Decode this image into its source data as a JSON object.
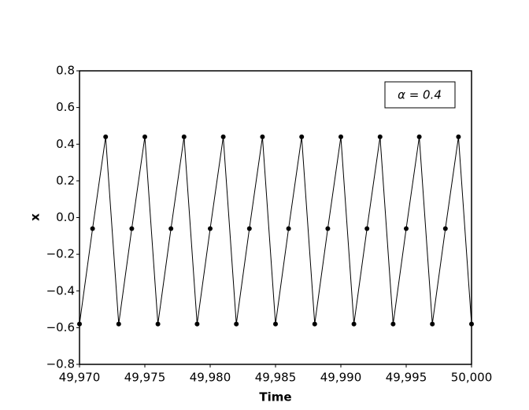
{
  "chart_data": {
    "type": "line",
    "xlabel": "Time",
    "ylabel": "x",
    "annotation": "α = 0.4",
    "color": "#000000",
    "markers": true,
    "x": [
      49970,
      49971,
      49972,
      49973,
      49974,
      49975,
      49976,
      49977,
      49978,
      49979,
      49980,
      49981,
      49982,
      49983,
      49984,
      49985,
      49986,
      49987,
      49988,
      49989,
      49990,
      49991,
      49992,
      49993,
      49994,
      49995,
      49996,
      49997,
      49998,
      49999,
      50000
    ],
    "values": [
      -0.58,
      -0.06,
      0.44,
      -0.58,
      -0.06,
      0.44,
      -0.58,
      -0.06,
      0.44,
      -0.58,
      -0.06,
      0.44,
      -0.58,
      -0.06,
      0.44,
      -0.58,
      -0.06,
      0.44,
      -0.58,
      -0.06,
      0.44,
      -0.58,
      -0.06,
      0.44,
      -0.58,
      -0.06,
      0.44,
      -0.58,
      -0.06,
      0.44,
      -0.58
    ],
    "xlim": [
      49970,
      50000
    ],
    "xticks": [
      {
        "value": 49970,
        "label": "49,970"
      },
      {
        "value": 49975,
        "label": "49,975"
      },
      {
        "value": 49980,
        "label": "49,980"
      },
      {
        "value": 49985,
        "label": "49,985"
      },
      {
        "value": 49990,
        "label": "49,990"
      },
      {
        "value": 49995,
        "label": "49,995"
      },
      {
        "value": 50000,
        "label": "50,000"
      }
    ],
    "ylim": [
      -0.8,
      0.8
    ],
    "yticks": [
      {
        "value": -0.8,
        "label": "−0.8"
      },
      {
        "value": -0.6,
        "label": "−0.6"
      },
      {
        "value": -0.4,
        "label": "−0.4"
      },
      {
        "value": -0.2,
        "label": "−0.2"
      },
      {
        "value": 0,
        "label": "0.0"
      },
      0.2,
      0.4,
      0.6,
      0.8
    ],
    "grid": false
  }
}
